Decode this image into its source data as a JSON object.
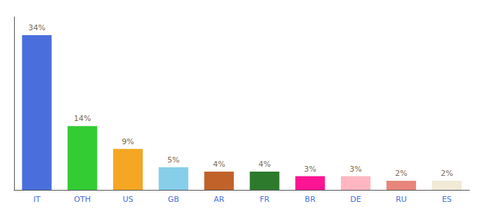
{
  "chart_data": {
    "type": "bar",
    "categories": [
      "IT",
      "OTH",
      "US",
      "GB",
      "AR",
      "FR",
      "BR",
      "DE",
      "RU",
      "ES"
    ],
    "values": [
      34,
      14,
      9,
      5,
      4,
      4,
      3,
      3,
      2,
      2
    ],
    "value_labels": [
      "34%",
      "14%",
      "9%",
      "5%",
      "4%",
      "4%",
      "3%",
      "3%",
      "2%",
      "2%"
    ],
    "colors": [
      "#4a6fdc",
      "#33cc33",
      "#f5a623",
      "#87ceeb",
      "#c0622a",
      "#2d7a2d",
      "#ff1493",
      "#ffb6c1",
      "#e8857a",
      "#f0ead6"
    ],
    "ylim": [
      0,
      38
    ],
    "data_labels": true,
    "tick_labels": "x",
    "grid": false
  }
}
